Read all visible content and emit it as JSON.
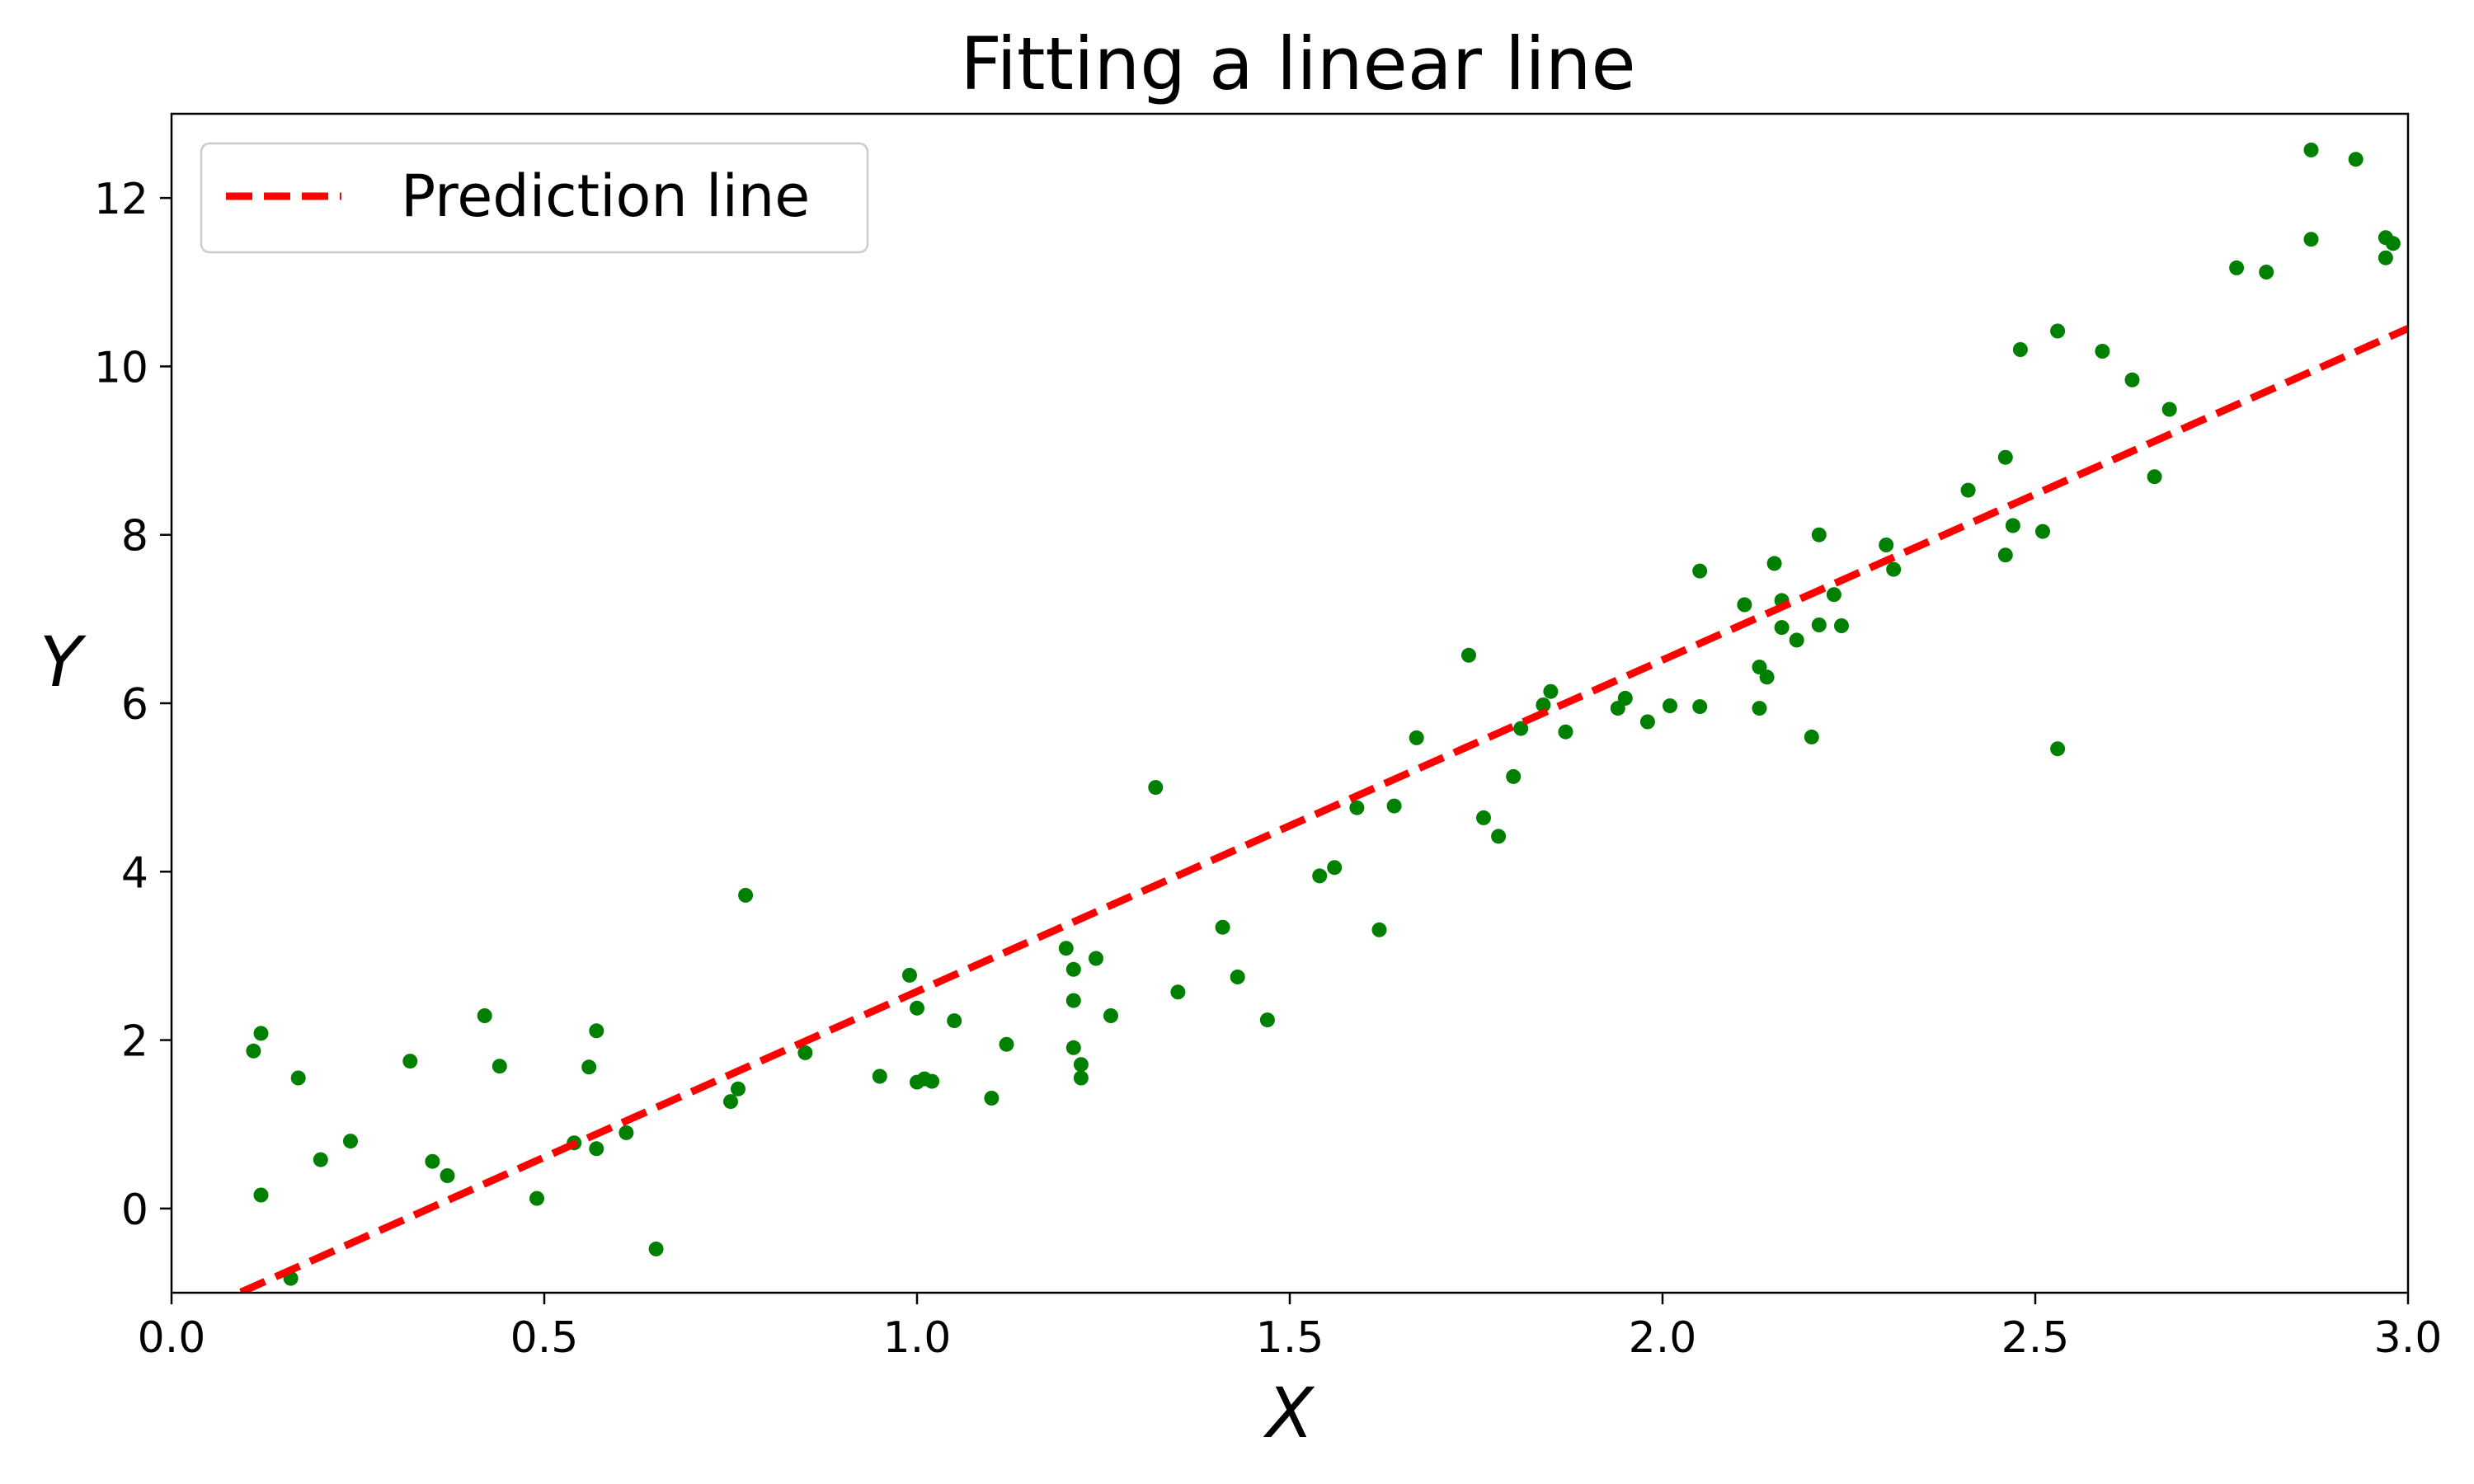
{
  "chart_data": {
    "type": "scatter",
    "title": "Fitting a linear line",
    "xlabel": "X",
    "ylabel": "Y",
    "xlim": [
      0.0,
      3.0
    ],
    "ylim": [
      -1.0,
      13.0
    ],
    "xticks": [
      "0.0",
      "0.5",
      "1.0",
      "1.5",
      "2.0",
      "2.5",
      "3.0"
    ],
    "yticks": [
      "0",
      "2",
      "4",
      "6",
      "8",
      "10",
      "12"
    ],
    "grid": false,
    "legend": {
      "position": "top-left",
      "entries": [
        "Prediction line"
      ]
    },
    "colors": {
      "points": "#008000",
      "line": "#ff0000"
    },
    "series": [
      {
        "type": "line",
        "name": "Prediction line",
        "style": "dashed",
        "x": [
          0.0,
          3.0
        ],
        "y": [
          -1.36,
          10.45
        ]
      },
      {
        "type": "scatter",
        "x": [
          0.11,
          0.12,
          0.12,
          0.16,
          0.17,
          0.2,
          0.24,
          0.32,
          0.35,
          0.37,
          0.42,
          0.44,
          0.49,
          0.54,
          0.56,
          0.57,
          0.57,
          0.61,
          0.65,
          0.75,
          0.76,
          0.77,
          0.85,
          0.95,
          0.99,
          1.0,
          1.0,
          1.01,
          1.02,
          1.05,
          1.1,
          1.12,
          1.2,
          1.21,
          1.21,
          1.21,
          1.22,
          1.22,
          1.24,
          1.26,
          1.32,
          1.35,
          1.41,
          1.43,
          1.47,
          1.54,
          1.56,
          1.59,
          1.62,
          1.64,
          1.67,
          1.74,
          1.76,
          1.78,
          1.8,
          1.81,
          1.84,
          1.85,
          1.87,
          1.94,
          1.95,
          1.98,
          2.01,
          2.05,
          2.05,
          2.11,
          2.13,
          2.13,
          2.14,
          2.15,
          2.16,
          2.16,
          2.18,
          2.2,
          2.21,
          2.21,
          2.23,
          2.24,
          2.3,
          2.31,
          2.41,
          2.46,
          2.46,
          2.47,
          2.48,
          2.51,
          2.53,
          2.53,
          2.59,
          2.63,
          2.66,
          2.68,
          2.77,
          2.81,
          2.87,
          2.87,
          2.93,
          2.97,
          2.97,
          2.98
        ],
        "y": [
          1.87,
          2.08,
          0.16,
          -0.83,
          1.55,
          0.58,
          0.8,
          1.75,
          0.56,
          0.39,
          2.29,
          1.69,
          0.12,
          0.78,
          1.68,
          0.71,
          2.11,
          0.9,
          -0.48,
          1.27,
          1.42,
          3.72,
          1.85,
          1.57,
          2.77,
          1.5,
          2.38,
          1.54,
          1.51,
          2.23,
          1.31,
          1.95,
          3.09,
          2.84,
          2.47,
          1.91,
          1.71,
          1.55,
          2.97,
          2.29,
          5.0,
          2.57,
          3.34,
          2.75,
          2.24,
          3.95,
          4.05,
          4.76,
          3.31,
          4.78,
          5.59,
          6.57,
          4.64,
          4.42,
          5.13,
          5.7,
          5.98,
          6.14,
          5.66,
          5.94,
          6.06,
          5.78,
          5.97,
          5.96,
          7.57,
          7.17,
          6.43,
          5.94,
          6.31,
          7.66,
          7.22,
          6.9,
          6.75,
          5.6,
          8.0,
          6.93,
          7.29,
          6.92,
          7.88,
          7.59,
          8.53,
          7.76,
          8.92,
          8.11,
          10.2,
          8.04,
          10.42,
          5.46,
          10.18,
          9.84,
          8.69,
          9.49,
          11.17,
          11.12,
          12.57,
          11.51,
          12.46,
          11.53,
          11.29,
          11.46
        ]
      }
    ]
  }
}
